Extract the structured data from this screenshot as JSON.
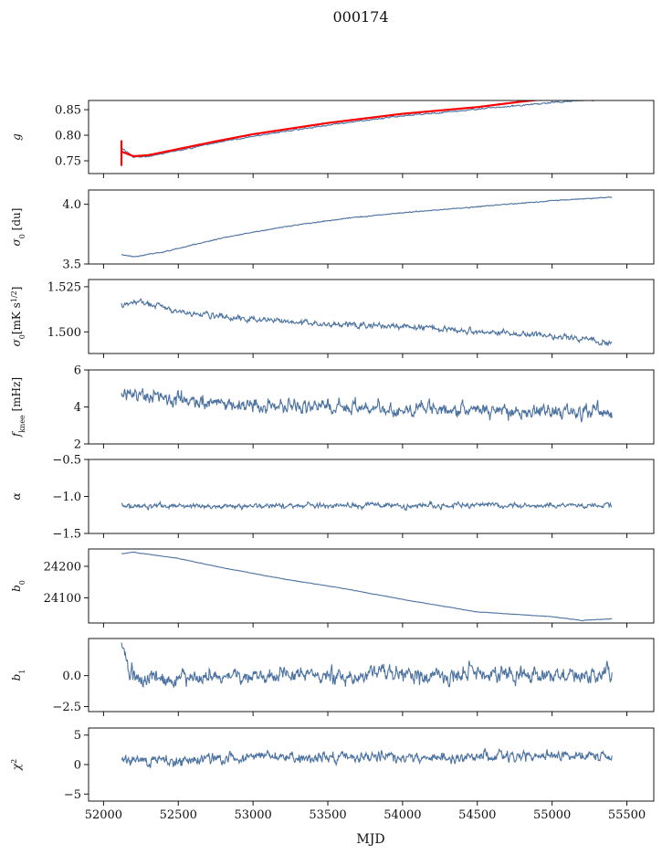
{
  "title": "000174",
  "colors": {
    "series": "#4c72a0",
    "fit": "#ff0000",
    "axis": "#000000"
  },
  "chart_data": {
    "type": "line",
    "xlabel": "MJD",
    "xlim": [
      51900,
      55680
    ],
    "xticks": [
      52000,
      52500,
      53000,
      53500,
      54000,
      54500,
      55000,
      55500
    ],
    "xtick_labels": [
      "52000",
      "52500",
      "53000",
      "53500",
      "54000",
      "54500",
      "55000",
      "55500"
    ],
    "x_start": 52120,
    "x_end": 55400,
    "panels": [
      {
        "key": "g",
        "ylabel_main": "g",
        "ylabel_sub": "",
        "ylabel_rest": "",
        "ylim": [
          0.725,
          0.868
        ],
        "yticks": [
          0.75,
          0.8,
          0.85
        ],
        "ytick_labels": [
          "0.75",
          "0.80",
          "0.85"
        ],
        "knots": [
          [
            52120,
            0.776
          ],
          [
            52200,
            0.757
          ],
          [
            52300,
            0.759
          ],
          [
            52500,
            0.77
          ],
          [
            52750,
            0.785
          ],
          [
            53000,
            0.798
          ],
          [
            53500,
            0.82
          ],
          [
            54000,
            0.838
          ],
          [
            54500,
            0.851
          ],
          [
            55000,
            0.864
          ],
          [
            55400,
            0.872
          ]
        ],
        "noise": 0.0015,
        "fit_knots": [
          [
            52120,
            0.768
          ],
          [
            52200,
            0.759
          ],
          [
            52300,
            0.761
          ],
          [
            52500,
            0.773
          ],
          [
            52750,
            0.788
          ],
          [
            53000,
            0.802
          ],
          [
            53500,
            0.824
          ],
          [
            54000,
            0.842
          ],
          [
            54500,
            0.855
          ],
          [
            54800,
            0.866
          ],
          [
            55000,
            0.872
          ]
        ],
        "fit_spike": {
          "x": 52120,
          "y_low": 0.74,
          "y_high": 0.79
        }
      },
      {
        "key": "sigma0",
        "ylabel_main": "σ",
        "ylabel_sub": "0",
        "ylabel_rest": " [du]",
        "ylim": [
          3.5,
          4.12
        ],
        "yticks": [
          3.5,
          4.0
        ],
        "ytick_labels": [
          "3.5",
          "4.0"
        ],
        "knots": [
          [
            52120,
            3.58
          ],
          [
            52200,
            3.56
          ],
          [
            52400,
            3.6
          ],
          [
            52800,
            3.72
          ],
          [
            53200,
            3.81
          ],
          [
            53600,
            3.88
          ],
          [
            54000,
            3.93
          ],
          [
            54500,
            3.98
          ],
          [
            55000,
            4.03
          ],
          [
            55400,
            4.06
          ]
        ],
        "noise": 0.004
      },
      {
        "key": "sigma0k",
        "ylabel_main": "σ",
        "ylabel_sub": "0",
        "ylabel_rest": "[mK s",
        "ylabel_sup": "1/2",
        "ylabel_end": "]",
        "ylim": [
          1.488,
          1.529
        ],
        "yticks": [
          1.5,
          1.525
        ],
        "ytick_labels": [
          "1.500",
          "1.525"
        ],
        "knots": [
          [
            52120,
            1.515
          ],
          [
            52250,
            1.517
          ],
          [
            52500,
            1.511
          ],
          [
            53000,
            1.507
          ],
          [
            53500,
            1.504
          ],
          [
            54000,
            1.503
          ],
          [
            54500,
            1.5
          ],
          [
            55000,
            1.498
          ],
          [
            55400,
            1.494
          ]
        ],
        "noise": 0.0016
      },
      {
        "key": "fknee",
        "ylabel_main": "f",
        "ylabel_sub": "knee",
        "ylabel_rest": " [mHz]",
        "ylim": [
          2,
          6
        ],
        "yticks": [
          2,
          4,
          6
        ],
        "ytick_labels": [
          "2",
          "4",
          "6"
        ],
        "knots": [
          [
            52120,
            4.7
          ],
          [
            52500,
            4.4
          ],
          [
            53000,
            4.1
          ],
          [
            54000,
            3.9
          ],
          [
            55400,
            3.7
          ]
        ],
        "noise": 0.4
      },
      {
        "key": "alpha",
        "ylabel_main": "α",
        "ylabel_sub": "",
        "ylabel_rest": "",
        "ylim": [
          -1.5,
          -0.5
        ],
        "yticks": [
          -1.5,
          -1.0,
          -0.5
        ],
        "ytick_labels": [
          "−1.5",
          "−1.0",
          "−0.5"
        ],
        "knots": [
          [
            52120,
            -1.13
          ],
          [
            55400,
            -1.12
          ]
        ],
        "noise": 0.035
      },
      {
        "key": "b0",
        "ylabel_main": "b",
        "ylabel_sub": "0",
        "ylabel_rest": "",
        "ylim": [
          24020,
          24255
        ],
        "yticks": [
          24100,
          24200
        ],
        "ytick_labels": [
          "24100",
          "24200"
        ],
        "knots": [
          [
            52120,
            24240
          ],
          [
            52200,
            24245
          ],
          [
            52500,
            24225
          ],
          [
            52800,
            24195
          ],
          [
            53200,
            24160
          ],
          [
            53600,
            24130
          ],
          [
            54000,
            24095
          ],
          [
            54500,
            24055
          ],
          [
            55000,
            24040
          ],
          [
            55200,
            24028
          ],
          [
            55400,
            24033
          ]
        ],
        "noise": 0.7
      },
      {
        "key": "b1",
        "ylabel_main": "b",
        "ylabel_sub": "1",
        "ylabel_rest": "",
        "ylim": [
          -2.9,
          3.0
        ],
        "yticks": [
          -2.5,
          0.0
        ],
        "ytick_labels": [
          "−2.5",
          "0.0"
        ],
        "knots": [
          [
            52120,
            2.4
          ],
          [
            52180,
            0.2
          ],
          [
            52300,
            -0.3
          ],
          [
            53000,
            0.0
          ],
          [
            55400,
            0.1
          ]
        ],
        "noise": 0.65
      },
      {
        "key": "chi2",
        "ylabel_main": "χ",
        "ylabel_sub": "",
        "ylabel_rest": "",
        "ylabel_sup": "2",
        "ylim": [
          -6.2,
          6.2
        ],
        "yticks": [
          -5,
          0,
          5
        ],
        "ytick_labels": [
          "−5",
          "0",
          "5"
        ],
        "knots": [
          [
            52120,
            0.6
          ],
          [
            53000,
            1.2
          ],
          [
            54000,
            1.3
          ],
          [
            55400,
            1.6
          ]
        ],
        "noise": 0.9
      }
    ]
  }
}
